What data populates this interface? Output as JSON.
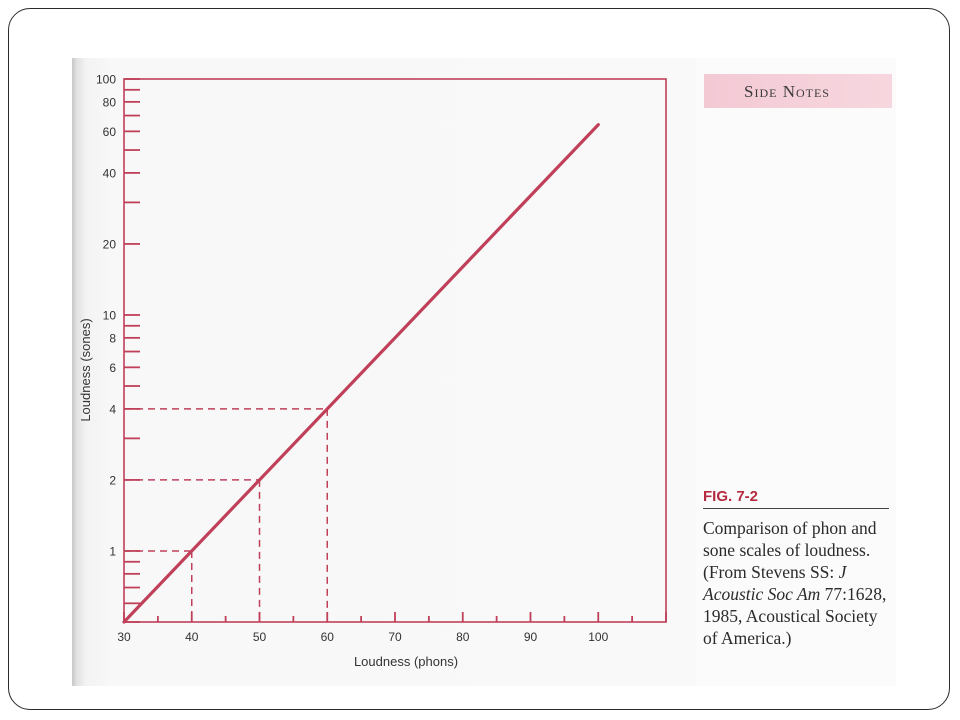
{
  "side_notes": {
    "title": "Side Notes"
  },
  "caption": {
    "figure_label": "FIG. 7-2",
    "text_before": "Comparison of phon and sone scales of loudness. (From Stevens SS: ",
    "journal_italic": "J Acoustic Soc Am",
    "text_after": " 77:1628, 1985, Acoustical Society of America.)"
  },
  "colors": {
    "curve": "#c0405a",
    "frame": "#c0405a",
    "text": "#2b2b2b",
    "fig_label": "#b52a3e",
    "banner": "#f3c9d4"
  },
  "chart_data": {
    "type": "line",
    "xlabel": "Loudness (phons)",
    "ylabel": "Loudness (sones)",
    "x_scale": "linear",
    "y_scale": "log",
    "xlim": [
      30,
      110
    ],
    "ylim": [
      0.5,
      100
    ],
    "x_ticks": [
      30,
      40,
      50,
      60,
      70,
      80,
      90,
      100
    ],
    "y_tick_labels": [
      1,
      2,
      4,
      6,
      8,
      10,
      20,
      40,
      60,
      80,
      100
    ],
    "grid": false,
    "series": [
      {
        "x": [
          30,
          100
        ],
        "y": [
          0.5,
          64
        ]
      }
    ],
    "reference_lines": [
      {
        "x": 40,
        "y": 1
      },
      {
        "x": 50,
        "y": 2
      },
      {
        "x": 60,
        "y": 4
      }
    ]
  }
}
